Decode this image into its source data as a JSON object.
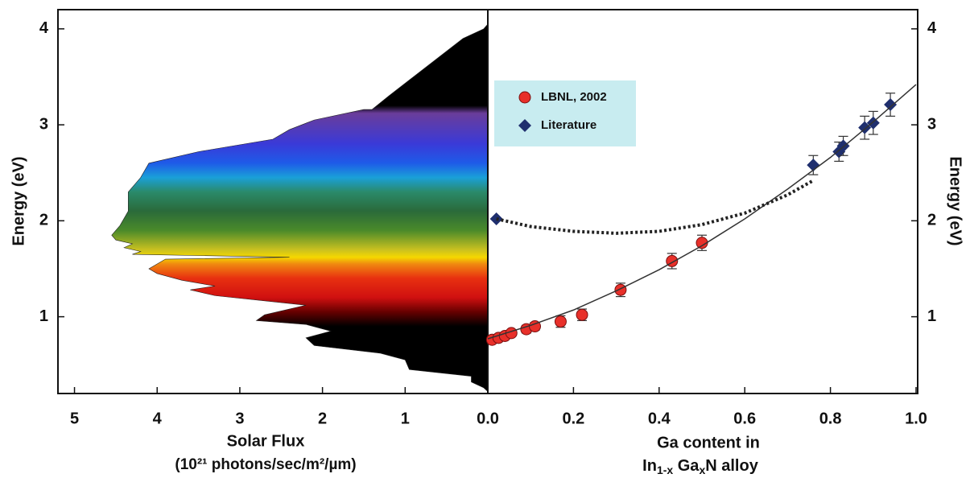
{
  "chart_data": [
    {
      "type": "area-h",
      "x_label": "Solar Flux",
      "x_label_line2": "(10²¹ photons/sec/m²/µm)",
      "y_label": "Energy (eV)",
      "xlim": [
        5.2,
        0
      ],
      "xticks": [
        5,
        4,
        3,
        2,
        1
      ],
      "ylim": [
        0.2,
        4.2
      ],
      "yticks": [
        1,
        2,
        3,
        4
      ],
      "series": [
        {
          "energy": [
            4.05,
            4.0,
            3.9,
            3.7,
            3.5,
            3.3,
            3.16,
            3.16,
            3.05,
            2.95,
            2.85,
            2.72,
            2.6,
            2.45,
            2.3,
            2.1,
            1.95,
            1.85,
            1.8,
            1.76,
            1.72,
            1.68,
            1.65,
            1.62,
            1.6,
            1.5,
            1.45,
            1.38,
            1.32,
            1.28,
            1.22,
            1.12,
            1.08,
            1.02,
            0.96,
            0.92,
            0.85,
            0.78,
            0.7,
            0.62,
            0.55,
            0.45,
            0.38,
            0.32,
            0.26,
            0.22
          ],
          "values": [
            0,
            0.05,
            0.3,
            0.6,
            0.9,
            1.2,
            1.4,
            1.5,
            2.1,
            2.4,
            2.6,
            3.5,
            4.1,
            4.2,
            4.35,
            4.35,
            4.45,
            4.55,
            4.5,
            4.3,
            4.4,
            4.2,
            4.3,
            2.4,
            3.9,
            4.1,
            4.0,
            3.7,
            3.3,
            3.6,
            3.3,
            2.2,
            2.4,
            2.7,
            2.8,
            2.2,
            1.9,
            2.2,
            2.1,
            1.3,
            1.0,
            0.95,
            0.2,
            0.2,
            0.05,
            0
          ],
          "gradient": [
            {
              "energy": 3.2,
              "color": "#000000"
            },
            {
              "energy": 3.12,
              "color": "#6a3d9a"
            },
            {
              "energy": 2.8,
              "color": "#3a3ad8"
            },
            {
              "energy": 2.6,
              "color": "#1e5be8"
            },
            {
              "energy": 2.45,
              "color": "#1aa0d8"
            },
            {
              "energy": 2.3,
              "color": "#2a8a6a"
            },
            {
              "energy": 2.1,
              "color": "#2a6a3a"
            },
            {
              "energy": 1.9,
              "color": "#4a8a2a"
            },
            {
              "energy": 1.7,
              "color": "#c8c020"
            },
            {
              "energy": 1.62,
              "color": "#f5d800"
            },
            {
              "energy": 1.55,
              "color": "#f08a10"
            },
            {
              "energy": 1.4,
              "color": "#e83010"
            },
            {
              "energy": 1.2,
              "color": "#d01010"
            },
            {
              "energy": 1.05,
              "color": "#660000"
            },
            {
              "energy": 0.9,
              "color": "#000000"
            }
          ]
        }
      ]
    },
    {
      "type": "scatter",
      "x_label": "Ga content  in",
      "x_label_line2": [
        "In",
        "1-x",
        " Ga",
        "x",
        "N alloy"
      ],
      "y_label": "Energy (eV)",
      "xlim": [
        0,
        1
      ],
      "xticks": [
        {
          "value": 0,
          "label": "0.0"
        },
        0.2,
        0.4,
        0.6,
        0.8,
        {
          "value": 1,
          "label": "1.0"
        }
      ],
      "ylim": [
        0.2,
        4.2
      ],
      "yticks": [
        1,
        2,
        3,
        4
      ],
      "series": [
        {
          "name": "LBNL, 2002",
          "marker": "circle",
          "color": "#e8302a",
          "x": [
            0.01,
            0.025,
            0.04,
            0.055,
            0.09,
            0.11,
            0.17,
            0.22,
            0.31,
            0.43,
            0.5
          ],
          "values": [
            0.76,
            0.78,
            0.8,
            0.83,
            0.87,
            0.9,
            0.95,
            1.02,
            1.28,
            1.58,
            1.77
          ],
          "errors": [
            0.02,
            0.02,
            0.02,
            0.02,
            0.04,
            0.04,
            0.06,
            0.06,
            0.07,
            0.08,
            0.08
          ]
        },
        {
          "name": "Literature",
          "marker": "diamond",
          "color": "#1f2f6e",
          "x": [
            0.02,
            0.76,
            0.82,
            0.83,
            0.88,
            0.9,
            0.94
          ],
          "values": [
            2.02,
            2.58,
            2.72,
            2.78,
            2.97,
            3.02,
            3.21
          ],
          "errors": [
            0,
            0.1,
            0.1,
            0.1,
            0.12,
            0.12,
            0.12
          ]
        },
        {
          "marker": "line",
          "style": "solid",
          "color": "#333333",
          "x": [
            0,
            0.1,
            0.2,
            0.3,
            0.4,
            0.5,
            0.6,
            0.7,
            0.8,
            0.9,
            1.0
          ],
          "values": [
            0.77,
            0.91,
            1.07,
            1.27,
            1.49,
            1.74,
            2.02,
            2.33,
            2.66,
            3.03,
            3.42
          ]
        },
        {
          "marker": "line",
          "style": "dotted",
          "color": "#222222",
          "x": [
            0.02,
            0.1,
            0.2,
            0.3,
            0.4,
            0.5,
            0.6,
            0.7,
            0.76
          ],
          "values": [
            2.02,
            1.94,
            1.89,
            1.87,
            1.89,
            1.96,
            2.08,
            2.27,
            2.42
          ]
        }
      ],
      "legend_color": "#c8ecf0"
    }
  ]
}
